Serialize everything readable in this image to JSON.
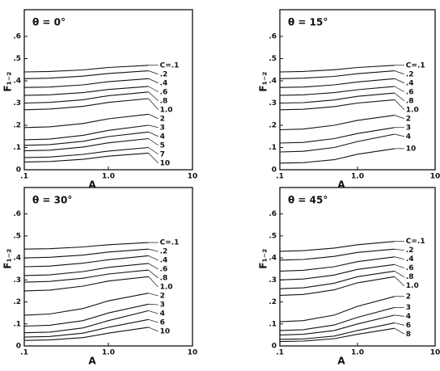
{
  "chart_data": [
    {
      "type": "line",
      "title": "θ = 0°",
      "x_label": "A",
      "y_label": "F₁₋₂",
      "log_x": true,
      "color": "#111111",
      "xlim": [
        0.1,
        10
      ],
      "ylim": [
        0,
        0.72
      ],
      "xticks": [
        {
          "value": 0.1,
          "label": ".1"
        },
        {
          "value": 1,
          "label": "1.0"
        },
        10
      ],
      "yticks": [
        0,
        {
          "value": 0.1,
          "label": ".1"
        },
        {
          "value": 0.2,
          "label": ".2"
        },
        {
          "value": 0.3,
          "label": ".3"
        },
        {
          "value": 0.4,
          "label": ".4"
        },
        {
          "value": 0.5,
          "label": ".5"
        },
        {
          "value": 0.6,
          "label": ".6"
        }
      ],
      "x": [
        0.1,
        0.2,
        0.5,
        1,
        3
      ],
      "series": [
        {
          "name": "C=.1",
          "values": [
            0.44,
            0.442,
            0.449,
            0.46,
            0.47
          ]
        },
        {
          "name": ".2",
          "values": [
            0.41,
            0.412,
            0.421,
            0.433,
            0.445
          ]
        },
        {
          "name": ".4",
          "values": [
            0.37,
            0.372,
            0.382,
            0.396,
            0.41
          ]
        },
        {
          "name": ".6",
          "values": [
            0.335,
            0.337,
            0.347,
            0.361,
            0.375
          ]
        },
        {
          "name": ".8",
          "values": [
            0.3,
            0.303,
            0.315,
            0.333,
            0.35
          ]
        },
        {
          "name": "1.0",
          "values": [
            0.27,
            0.273,
            0.285,
            0.303,
            0.32
          ]
        },
        {
          "name": "2",
          "values": [
            0.19,
            0.193,
            0.208,
            0.229,
            0.25
          ]
        },
        {
          "name": "3",
          "values": [
            0.135,
            0.138,
            0.155,
            0.177,
            0.2
          ]
        },
        {
          "name": "4",
          "values": [
            0.11,
            0.113,
            0.128,
            0.149,
            0.17
          ]
        },
        {
          "name": "5",
          "values": [
            0.085,
            0.088,
            0.102,
            0.121,
            0.14
          ]
        },
        {
          "name": "7",
          "values": [
            0.055,
            0.057,
            0.069,
            0.084,
            0.1
          ]
        },
        {
          "name": "10",
          "values": [
            0.035,
            0.037,
            0.047,
            0.061,
            0.075
          ]
        }
      ]
    },
    {
      "type": "line",
      "title": "θ = 15°",
      "x_label": "A",
      "y_label": "F₁₋₂",
      "log_x": true,
      "color": "#111111",
      "xlim": [
        0.1,
        10
      ],
      "ylim": [
        0,
        0.72
      ],
      "xticks": [
        {
          "value": 0.1,
          "label": ".1"
        },
        {
          "value": 1,
          "label": "1.0"
        },
        10
      ],
      "yticks": [
        0,
        {
          "value": 0.1,
          "label": ".1"
        },
        {
          "value": 0.2,
          "label": ".2"
        },
        {
          "value": 0.3,
          "label": ".3"
        },
        {
          "value": 0.4,
          "label": ".4"
        },
        {
          "value": 0.5,
          "label": ".5"
        },
        {
          "value": 0.6,
          "label": ".6"
        }
      ],
      "x": [
        0.1,
        0.2,
        0.5,
        1,
        3
      ],
      "series": [
        {
          "name": "C=.1",
          "values": [
            0.44,
            0.442,
            0.45,
            0.46,
            0.47
          ]
        },
        {
          "name": ".2",
          "values": [
            0.41,
            0.412,
            0.42,
            0.432,
            0.445
          ]
        },
        {
          "name": ".4",
          "values": [
            0.37,
            0.372,
            0.382,
            0.395,
            0.41
          ]
        },
        {
          "name": ".6",
          "values": [
            0.335,
            0.337,
            0.347,
            0.36,
            0.375
          ]
        },
        {
          "name": ".8",
          "values": [
            0.3,
            0.302,
            0.314,
            0.33,
            0.345
          ]
        },
        {
          "name": "1.0",
          "values": [
            0.27,
            0.272,
            0.284,
            0.3,
            0.315
          ]
        },
        {
          "name": "2",
          "values": [
            0.18,
            0.183,
            0.2,
            0.222,
            0.245
          ]
        },
        {
          "name": "3",
          "values": [
            0.12,
            0.123,
            0.14,
            0.163,
            0.19
          ]
        },
        {
          "name": "4",
          "values": [
            0.08,
            0.083,
            0.1,
            0.127,
            0.16
          ]
        },
        {
          "name": "10",
          "values": [
            0.03,
            0.032,
            0.045,
            0.07,
            0.095
          ]
        }
      ]
    },
    {
      "type": "line",
      "title": "θ = 30°",
      "x_label": "A",
      "y_label": "F₁₋₂",
      "log_x": true,
      "color": "#111111",
      "xlim": [
        0.1,
        10
      ],
      "ylim": [
        0,
        0.72
      ],
      "xticks": [
        {
          "value": 0.1,
          "label": ".1"
        },
        {
          "value": 1,
          "label": "1.0"
        },
        10
      ],
      "yticks": [
        0,
        {
          "value": 0.1,
          "label": ".1"
        },
        {
          "value": 0.2,
          "label": ".2"
        },
        {
          "value": 0.3,
          "label": ".3"
        },
        {
          "value": 0.4,
          "label": ".4"
        },
        {
          "value": 0.5,
          "label": ".5"
        },
        {
          "value": 0.6,
          "label": ".6"
        }
      ],
      "x": [
        0.1,
        0.2,
        0.5,
        1,
        3
      ],
      "series": [
        {
          "name": "C=.1",
          "values": [
            0.44,
            0.442,
            0.45,
            0.46,
            0.47
          ]
        },
        {
          "name": ".2",
          "values": [
            0.4,
            0.403,
            0.413,
            0.427,
            0.44
          ]
        },
        {
          "name": ".4",
          "values": [
            0.36,
            0.363,
            0.376,
            0.392,
            0.41
          ]
        },
        {
          "name": ".6",
          "values": [
            0.32,
            0.323,
            0.338,
            0.357,
            0.375
          ]
        },
        {
          "name": ".8",
          "values": [
            0.29,
            0.293,
            0.308,
            0.327,
            0.345
          ]
        },
        {
          "name": "1.0",
          "values": [
            0.25,
            0.254,
            0.272,
            0.295,
            0.315
          ]
        },
        {
          "name": "2",
          "values": [
            0.14,
            0.145,
            0.17,
            0.205,
            0.24
          ]
        },
        {
          "name": "3",
          "values": [
            0.09,
            0.094,
            0.115,
            0.15,
            0.19
          ]
        },
        {
          "name": "4",
          "values": [
            0.06,
            0.063,
            0.082,
            0.115,
            0.16
          ]
        },
        {
          "name": "6",
          "values": [
            0.04,
            0.043,
            0.058,
            0.085,
            0.12
          ]
        },
        {
          "name": "10",
          "values": [
            0.025,
            0.027,
            0.038,
            0.058,
            0.085
          ]
        }
      ]
    },
    {
      "type": "line",
      "title": "θ = 45°",
      "x_label": "A",
      "y_label": "F₁₋₂",
      "log_x": true,
      "color": "#111111",
      "xlim": [
        0.1,
        10
      ],
      "ylim": [
        0,
        0.72
      ],
      "xticks": [
        {
          "value": 0.1,
          "label": ".1"
        },
        {
          "value": 1,
          "label": "1.0"
        },
        10
      ],
      "yticks": [
        0,
        {
          "value": 0.1,
          "label": ".1"
        },
        {
          "value": 0.2,
          "label": ".2"
        },
        {
          "value": 0.3,
          "label": ".3"
        },
        {
          "value": 0.4,
          "label": ".4"
        },
        {
          "value": 0.5,
          "label": ".5"
        },
        {
          "value": 0.6,
          "label": ".6"
        }
      ],
      "x": [
        0.1,
        0.2,
        0.5,
        1,
        3
      ],
      "series": [
        {
          "name": "C=.1",
          "values": [
            0.43,
            0.433,
            0.445,
            0.46,
            0.475
          ]
        },
        {
          "name": ".2",
          "values": [
            0.39,
            0.393,
            0.407,
            0.425,
            0.44
          ]
        },
        {
          "name": ".4",
          "values": [
            0.34,
            0.344,
            0.36,
            0.383,
            0.405
          ]
        },
        {
          "name": ".6",
          "values": [
            0.3,
            0.304,
            0.322,
            0.348,
            0.37
          ]
        },
        {
          "name": ".8",
          "values": [
            0.26,
            0.264,
            0.285,
            0.315,
            0.34
          ]
        },
        {
          "name": "1.0",
          "values": [
            0.23,
            0.234,
            0.255,
            0.287,
            0.315
          ]
        },
        {
          "name": "2",
          "values": [
            0.11,
            0.115,
            0.14,
            0.18,
            0.225
          ]
        },
        {
          "name": "3",
          "values": [
            0.07,
            0.074,
            0.095,
            0.13,
            0.175
          ]
        },
        {
          "name": "4",
          "values": [
            0.05,
            0.053,
            0.07,
            0.1,
            0.14
          ]
        },
        {
          "name": "6",
          "values": [
            0.03,
            0.032,
            0.045,
            0.07,
            0.105
          ]
        },
        {
          "name": "8",
          "values": [
            0.02,
            0.022,
            0.033,
            0.053,
            0.08
          ]
        }
      ]
    }
  ]
}
